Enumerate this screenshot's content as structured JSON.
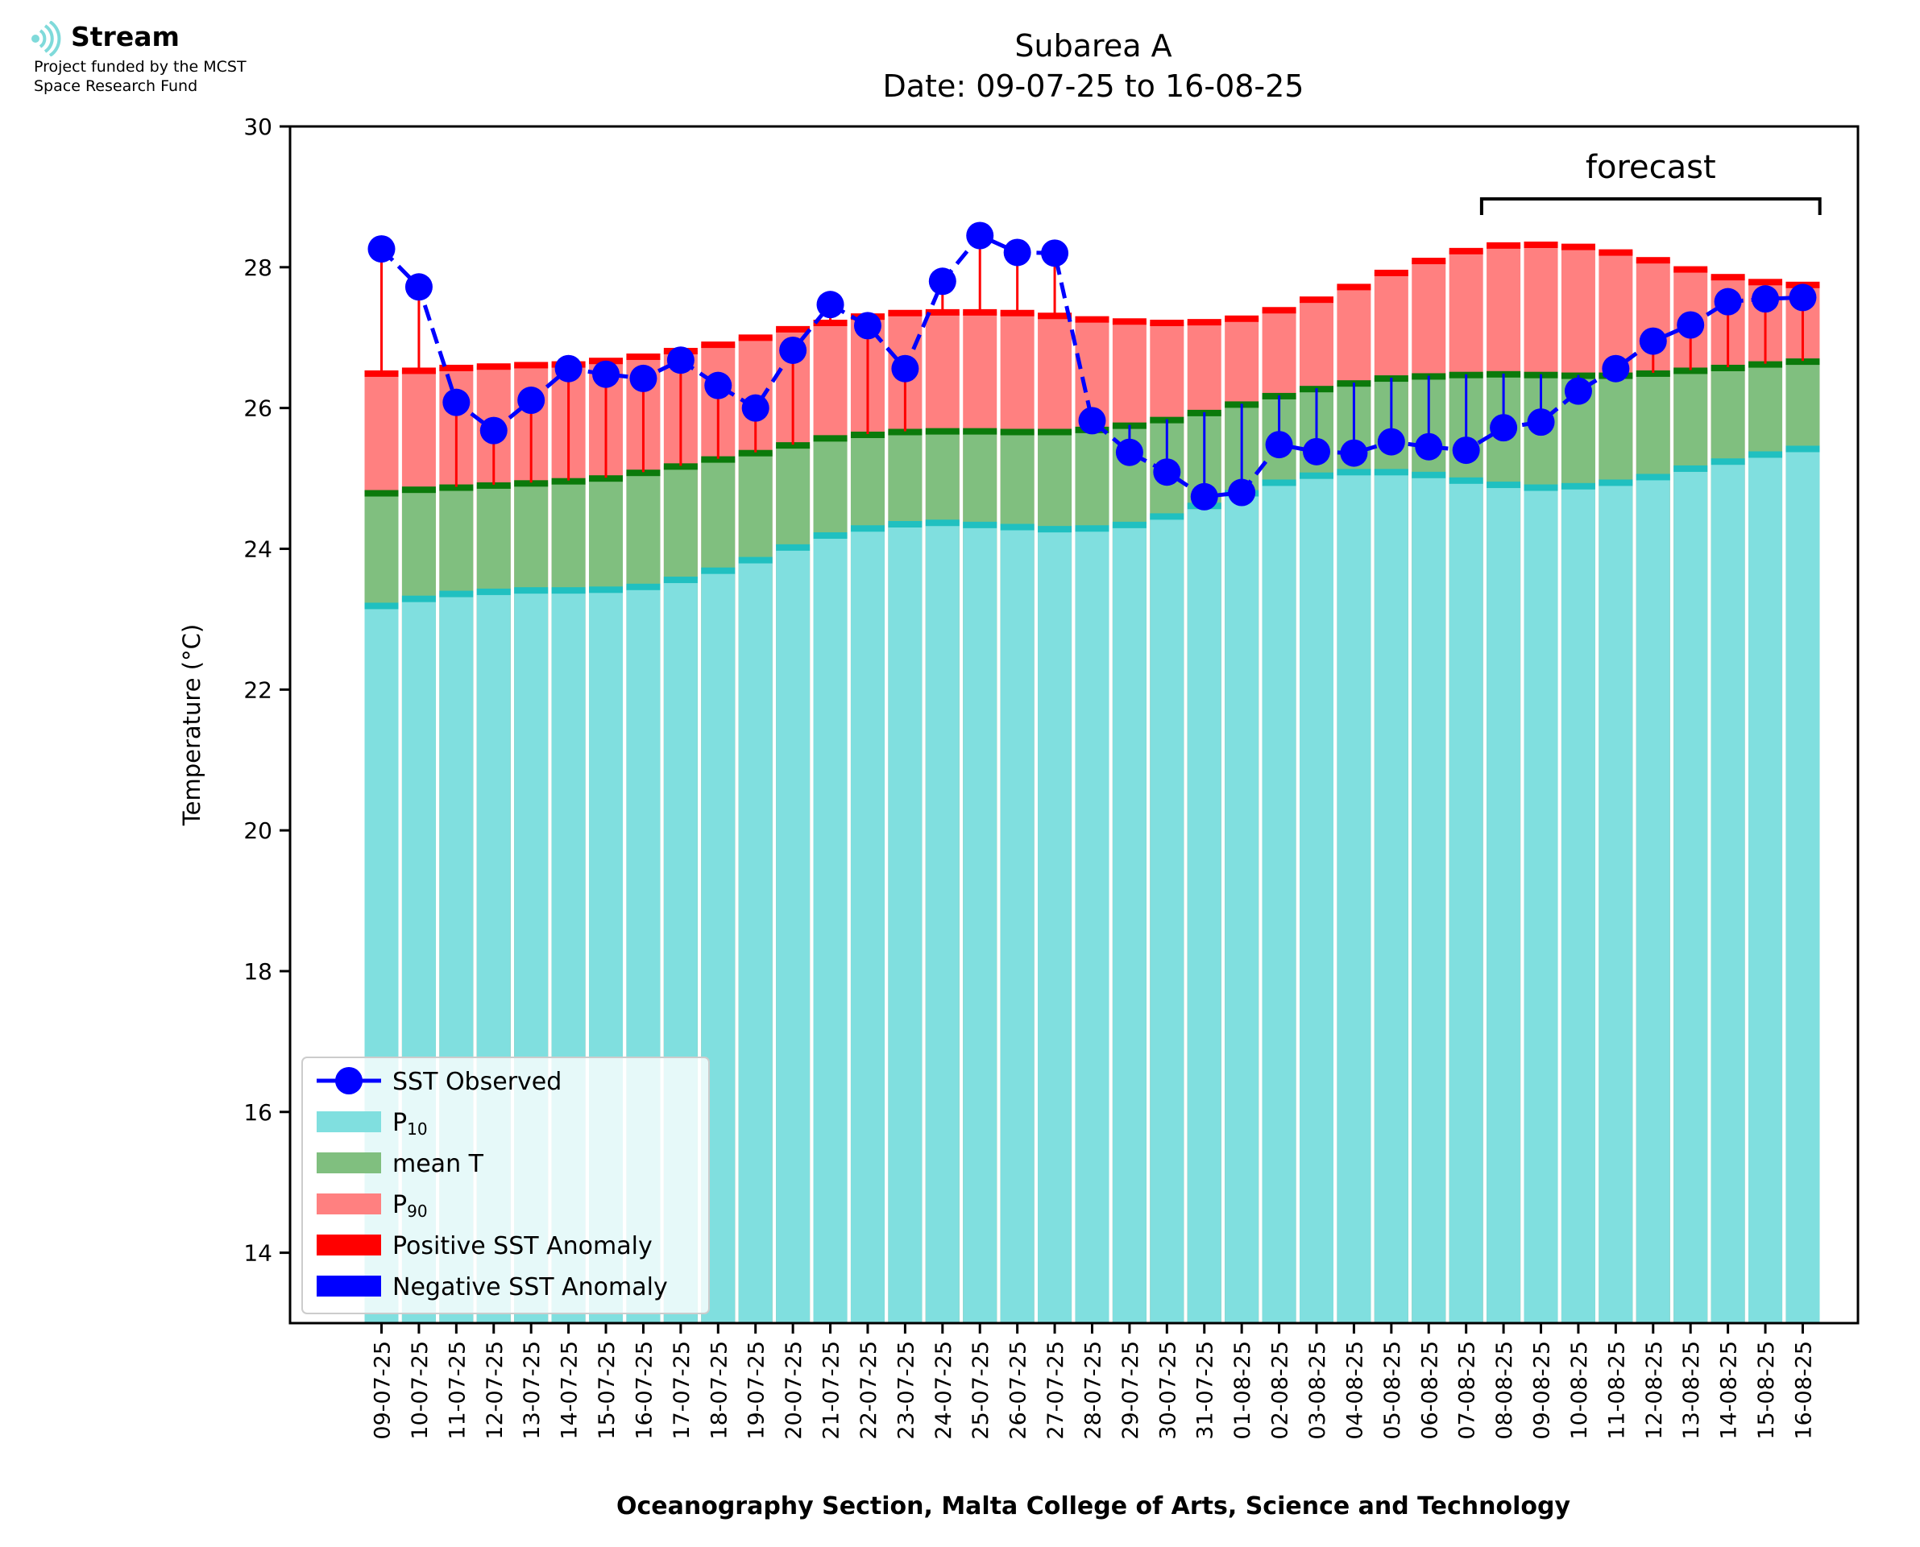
{
  "logo": {
    "name": "Stream",
    "line1": "Project funded by the MCST",
    "line2": "Space Research Fund",
    "mark_color": "#7fdada"
  },
  "colors": {
    "p10": "#80dfdf",
    "p10_edge": "#20c0c0",
    "mean": "#80bf7f",
    "mean_edge": "#0b7a0b",
    "p90": "#ff8080",
    "p90_edge": "#ff0000",
    "observed": "#0000ff",
    "positive_anomaly": "#ff0000",
    "negative_anomaly": "#0000ff"
  },
  "chart_data": {
    "type": "bar",
    "title": "Subarea A",
    "subtitle": "Date: 09-07-25 to 16-08-25",
    "xlabel": "Oceanography Section, Malta College of Arts, Science and Technology",
    "ylabel": "Temperature (°C)",
    "ylim": [
      13,
      30
    ],
    "yticks": [
      14,
      16,
      18,
      20,
      22,
      24,
      26,
      28,
      30
    ],
    "annotation": "forecast",
    "forecast_start": "08-08-25",
    "forecast_end": "16-08-25",
    "legend_position": "bottom-left",
    "legend": [
      {
        "label": "SST Observed",
        "kind": "line-marker",
        "color": "#0000ff"
      },
      {
        "label": "P",
        "sub": "10",
        "kind": "patch",
        "color": "#80dfdf"
      },
      {
        "label": "mean T",
        "kind": "patch",
        "color": "#80bf7f"
      },
      {
        "label": "P",
        "sub": "90",
        "kind": "patch",
        "color": "#ff8080"
      },
      {
        "label": "Positive SST Anomaly",
        "kind": "patch",
        "color": "#ff0000"
      },
      {
        "label": "Negative SST Anomaly",
        "kind": "patch",
        "color": "#0000ff"
      }
    ],
    "categories": [
      "09-07-25",
      "10-07-25",
      "11-07-25",
      "12-07-25",
      "13-07-25",
      "14-07-25",
      "15-07-25",
      "16-07-25",
      "17-07-25",
      "18-07-25",
      "19-07-25",
      "20-07-25",
      "21-07-25",
      "22-07-25",
      "23-07-25",
      "24-07-25",
      "25-07-25",
      "26-07-25",
      "27-07-25",
      "28-07-25",
      "29-07-25",
      "30-07-25",
      "31-07-25",
      "01-08-25",
      "02-08-25",
      "03-08-25",
      "04-08-25",
      "05-08-25",
      "06-08-25",
      "07-08-25",
      "08-08-25",
      "09-08-25",
      "10-08-25",
      "11-08-25",
      "12-08-25",
      "13-08-25",
      "14-08-25",
      "15-08-25",
      "16-08-25"
    ],
    "series": [
      {
        "name": "P",
        "sub": "10",
        "values": [
          23.2,
          23.3,
          23.37,
          23.4,
          23.42,
          23.42,
          23.43,
          23.47,
          23.57,
          23.7,
          23.85,
          24.03,
          24.2,
          24.3,
          24.36,
          24.38,
          24.35,
          24.32,
          24.29,
          24.3,
          24.35,
          24.47,
          24.62,
          24.8,
          24.95,
          25.05,
          25.1,
          25.1,
          25.06,
          24.98,
          24.92,
          24.88,
          24.9,
          24.95,
          25.03,
          25.15,
          25.25,
          25.35,
          25.43
        ]
      },
      {
        "name": "mean T",
        "values": [
          24.8,
          24.85,
          24.88,
          24.91,
          24.94,
          24.97,
          25.01,
          25.09,
          25.18,
          25.28,
          25.37,
          25.48,
          25.58,
          25.63,
          25.67,
          25.68,
          25.68,
          25.67,
          25.67,
          25.7,
          25.76,
          25.84,
          25.94,
          26.06,
          26.18,
          26.28,
          26.36,
          26.43,
          26.46,
          26.48,
          26.49,
          26.48,
          26.47,
          26.47,
          26.5,
          26.54,
          26.58,
          26.63,
          26.67
        ]
      },
      {
        "name": "P",
        "sub": "90",
        "values": [
          26.5,
          26.54,
          26.58,
          26.6,
          26.62,
          26.63,
          26.68,
          26.74,
          26.82,
          26.91,
          27.01,
          27.13,
          27.22,
          27.31,
          27.36,
          27.37,
          27.37,
          27.36,
          27.32,
          27.27,
          27.24,
          27.22,
          27.23,
          27.28,
          27.4,
          27.55,
          27.73,
          27.93,
          28.1,
          28.24,
          28.32,
          28.33,
          28.3,
          28.22,
          28.11,
          27.98,
          27.87,
          27.8,
          27.76
        ]
      },
      {
        "name": "SST Observed",
        "values": [
          28.26,
          27.72,
          26.08,
          25.68,
          26.11,
          26.56,
          26.48,
          26.42,
          26.68,
          26.32,
          26.0,
          26.82,
          27.47,
          27.17,
          26.56,
          27.8,
          28.45,
          28.21,
          28.2,
          25.82,
          25.37,
          25.09,
          24.74,
          24.8,
          25.48,
          25.38,
          25.36,
          25.52,
          25.45,
          25.4,
          25.72,
          25.8,
          26.24,
          26.56,
          26.95,
          27.18,
          27.51,
          27.55,
          27.57
        ]
      }
    ]
  }
}
